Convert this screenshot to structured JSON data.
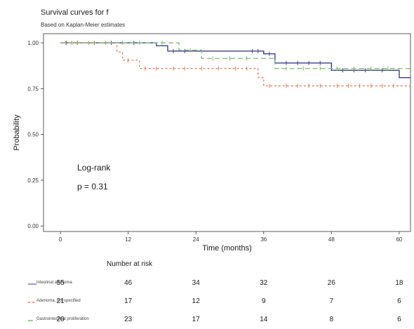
{
  "figure": {
    "title": "Survival curves for f",
    "subtitle": "Based on Kaplan-Meier estimates"
  },
  "annotation": {
    "test": "Log-rank",
    "p_value": "p = 0.31"
  },
  "risk_table": {
    "heading": "Number at risk",
    "rows": [
      {
        "label": "Intestinal adenoma",
        "color": "#6b6bcc",
        "counts": [
          "55",
          "46",
          "34",
          "32",
          "26",
          "18"
        ]
      },
      {
        "label": "Adenoma, not specified",
        "color": "#e8795a",
        "counts": [
          "21",
          "17",
          "12",
          "9",
          "7",
          "6"
        ]
      },
      {
        "label": "Gastrointestinal proliferation",
        "color": "#7cbf6e",
        "counts": [
          "20",
          "23",
          "17",
          "14",
          "8",
          "6"
        ]
      }
    ]
  },
  "chart_data": {
    "type": "line",
    "title": "Survival curves for f",
    "subtitle": "Based on Kaplan-Meier estimates",
    "xlabel": "Time (months)",
    "ylabel": "Probability",
    "xlim": [
      -3,
      62
    ],
    "ylim": [
      -0.03,
      1.05
    ],
    "x_ticks": [
      0,
      12,
      24,
      36,
      48,
      60
    ],
    "y_ticks": [
      0,
      0.25,
      0.5,
      0.75,
      1.0
    ],
    "y_tick_labels": [
      "0.00",
      "0.25",
      "0.50",
      "0.75",
      "1.00"
    ],
    "grid": false,
    "step": true,
    "series": [
      {
        "color": "#3b3f8f",
        "dash": "none",
        "x": [
          0,
          17,
          19,
          36,
          38,
          48,
          60,
          62
        ],
        "y": [
          1.0,
          0.984,
          0.955,
          0.94,
          0.89,
          0.85,
          0.81,
          0.81
        ],
        "censored": [
          [
            1,
            1.0
          ],
          [
            3,
            1.0
          ],
          [
            6,
            1.0
          ],
          [
            9,
            1.0
          ],
          [
            13,
            1.0
          ],
          [
            20,
            0.955
          ],
          [
            22,
            0.955
          ],
          [
            34,
            0.955
          ],
          [
            35,
            0.955
          ],
          [
            37,
            0.94
          ],
          [
            40,
            0.89
          ],
          [
            42,
            0.89
          ],
          [
            44,
            0.89
          ],
          [
            46,
            0.89
          ],
          [
            50,
            0.85
          ],
          [
            52,
            0.85
          ],
          [
            54,
            0.85
          ],
          [
            57,
            0.85
          ]
        ]
      },
      {
        "color": "#e8795a",
        "dash": "3,3",
        "x": [
          0,
          10,
          11,
          14,
          35,
          36,
          62
        ],
        "y": [
          1.0,
          0.95,
          0.905,
          0.86,
          0.81,
          0.765,
          0.765
        ],
        "censored": [
          [
            3,
            1.0
          ],
          [
            6,
            1.0
          ],
          [
            12,
            0.905
          ],
          [
            15,
            0.86
          ],
          [
            17,
            0.86
          ],
          [
            20,
            0.86
          ],
          [
            22,
            0.86
          ],
          [
            25,
            0.86
          ],
          [
            28,
            0.86
          ],
          [
            31,
            0.86
          ],
          [
            33,
            0.86
          ],
          [
            37,
            0.765
          ],
          [
            40,
            0.765
          ],
          [
            42,
            0.765
          ],
          [
            44,
            0.765
          ],
          [
            46,
            0.765
          ],
          [
            49,
            0.765
          ],
          [
            51,
            0.765
          ],
          [
            53,
            0.765
          ],
          [
            55,
            0.765
          ],
          [
            57,
            0.765
          ],
          [
            59,
            0.765
          ]
        ]
      },
      {
        "color": "#7cbf6e",
        "dash": "7,4",
        "x": [
          0,
          21,
          25,
          38,
          62
        ],
        "y": [
          1.0,
          0.96,
          0.915,
          0.86,
          0.86
        ],
        "censored": [
          [
            2,
            1.0
          ],
          [
            5,
            1.0
          ],
          [
            8,
            1.0
          ],
          [
            11,
            1.0
          ],
          [
            14,
            1.0
          ],
          [
            18,
            1.0
          ],
          [
            23,
            0.96
          ],
          [
            27,
            0.915
          ],
          [
            30,
            0.915
          ],
          [
            33,
            0.915
          ],
          [
            40,
            0.86
          ],
          [
            43,
            0.86
          ],
          [
            46,
            0.86
          ],
          [
            49,
            0.86
          ],
          [
            52,
            0.86
          ],
          [
            55,
            0.86
          ],
          [
            58,
            0.86
          ]
        ]
      }
    ]
  }
}
